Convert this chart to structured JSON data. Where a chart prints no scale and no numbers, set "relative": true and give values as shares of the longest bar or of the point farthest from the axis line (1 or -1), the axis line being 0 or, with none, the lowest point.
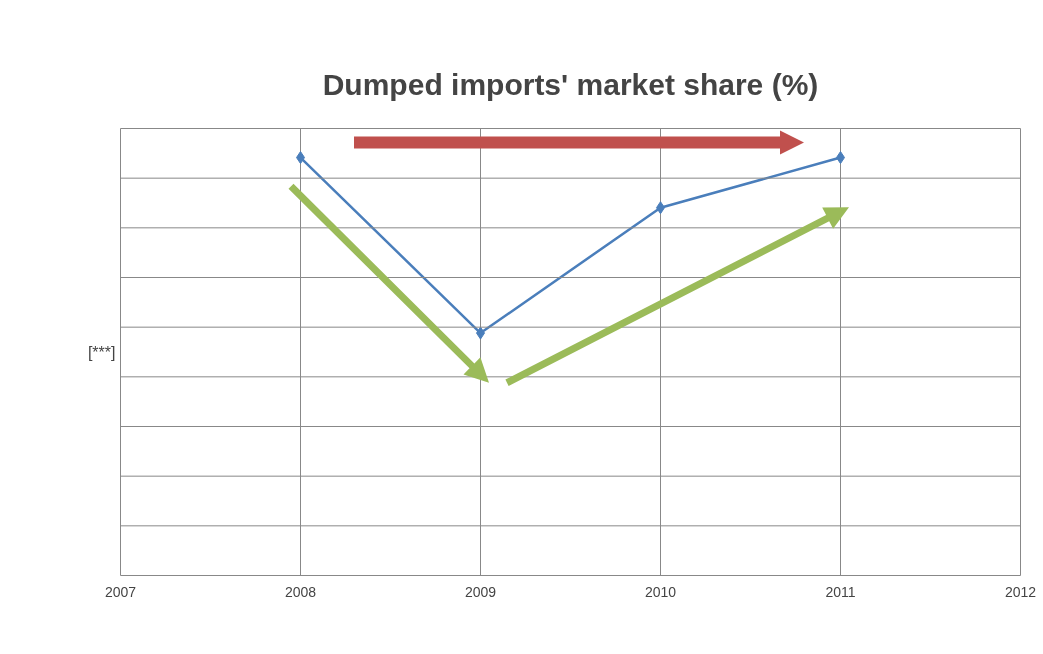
{
  "chart_data": {
    "type": "line",
    "title": "Dumped imports' market share (%)",
    "ylabel": "[***]",
    "x": [
      2008,
      2009,
      2010,
      2011
    ],
    "series": [
      {
        "color": "#4a7ebb",
        "values": [
          1.0,
          0.58,
          0.88,
          1.0
        ]
      }
    ],
    "relative": true,
    "xlim": [
      2007,
      2012
    ],
    "xticks": [
      2007,
      2008,
      2009,
      2010,
      2011,
      2012
    ],
    "grid": true,
    "marker": "diamond",
    "line_style": "solid"
  }
}
